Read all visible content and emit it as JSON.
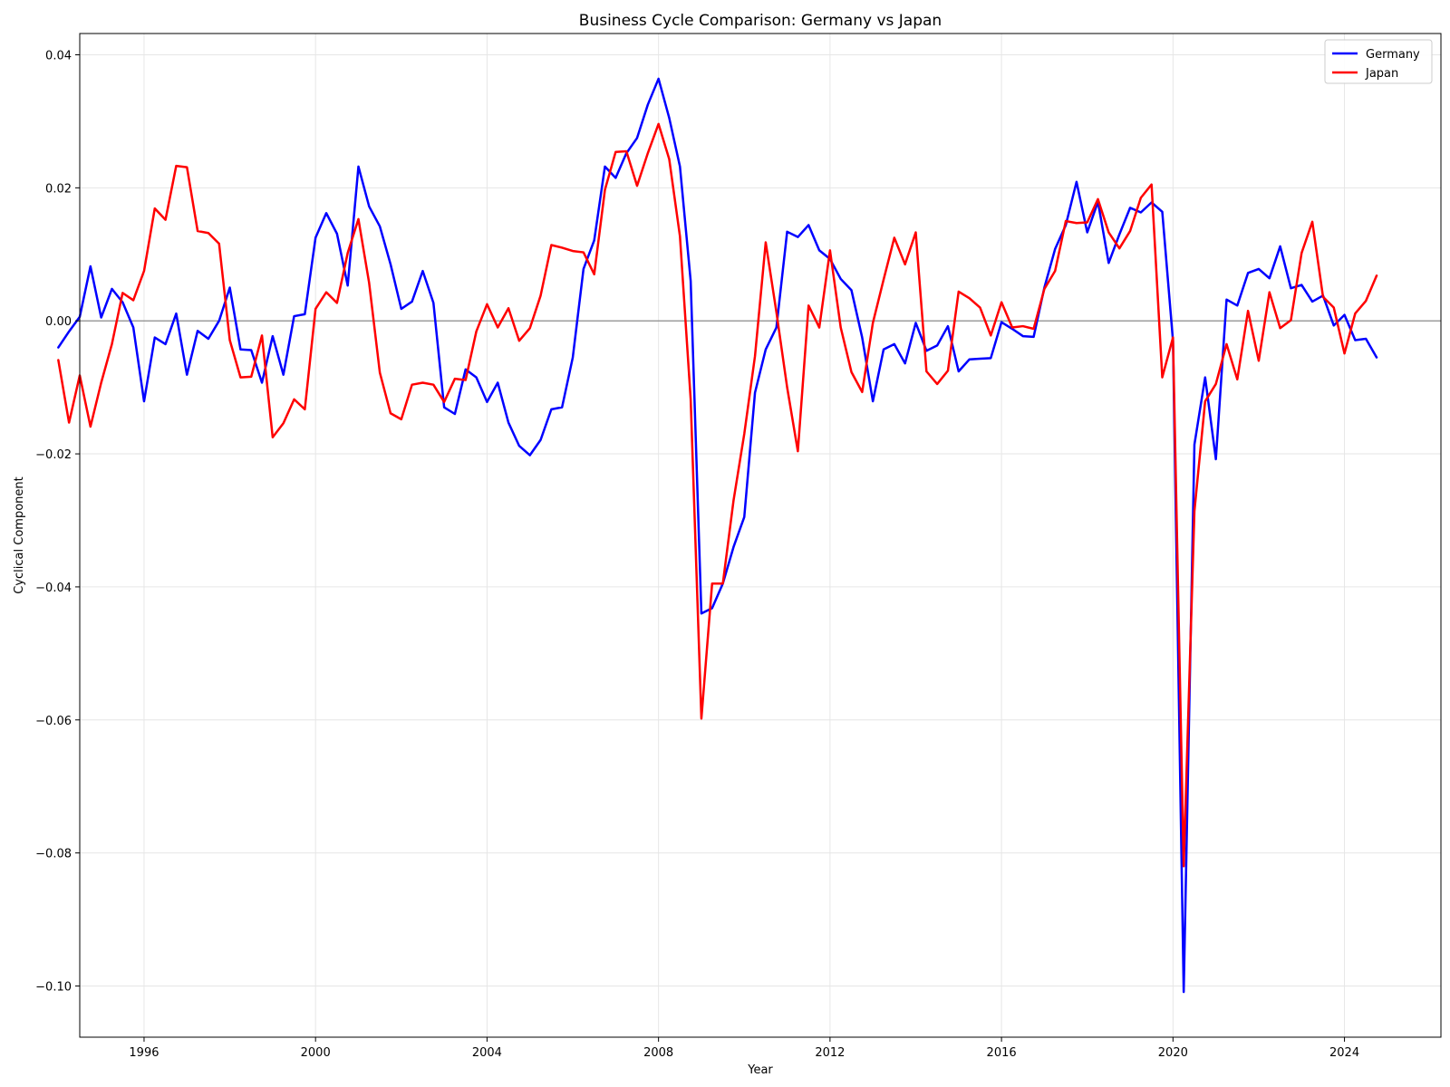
{
  "chart_data": {
    "type": "line",
    "title": "Business Cycle Comparison: Germany vs Japan",
    "xlabel": "Year",
    "ylabel": "Cyclical Component",
    "xlim": [
      1994.5,
      2026.25
    ],
    "ylim": [
      -0.1077,
      0.0432
    ],
    "xticks": [
      1996,
      2000,
      2004,
      2008,
      2012,
      2016,
      2020,
      2024
    ],
    "yticks": [
      0.04,
      0.02,
      0.0,
      -0.02,
      -0.04,
      -0.06,
      -0.08,
      -0.1
    ],
    "ytick_labels": [
      "0.04",
      "0.02",
      "0.00",
      "−0.02",
      "−0.04",
      "−0.06",
      "−0.08",
      "−0.10"
    ],
    "grid": true,
    "zero_line": true,
    "legend": "top-right",
    "x_start": 1994.0,
    "x_step": 0.25,
    "series": [
      {
        "name": "Germany",
        "color": "#0000ff",
        "values": [
          -0.004,
          -0.0016,
          0.0006,
          0.0082,
          0.0005,
          0.0048,
          0.0028,
          -0.001,
          -0.0121,
          -0.0025,
          -0.0035,
          0.0011,
          -0.0081,
          -0.0015,
          -0.0027,
          0.0,
          0.005,
          -0.0043,
          -0.0044,
          -0.0093,
          -0.0023,
          -0.0081,
          0.0007,
          0.001,
          0.0125,
          0.0162,
          0.0131,
          0.0053,
          0.0232,
          0.0172,
          0.0142,
          0.0085,
          0.0018,
          0.0029,
          0.0075,
          0.0027,
          -0.013,
          -0.014,
          -0.0073,
          -0.0085,
          -0.0122,
          -0.0093,
          -0.0153,
          -0.0188,
          -0.0202,
          -0.0179,
          -0.0133,
          -0.013,
          -0.0055,
          0.0078,
          0.0121,
          0.0232,
          0.0215,
          0.0252,
          0.0275,
          0.0325,
          0.0364,
          0.0305,
          0.0232,
          0.006,
          -0.044,
          -0.0432,
          -0.0395,
          -0.034,
          -0.0295,
          -0.0108,
          -0.0043,
          -0.001,
          0.0134,
          0.0126,
          0.0144,
          0.0106,
          0.0093,
          0.0063,
          0.0046,
          -0.0025,
          -0.0121,
          -0.0043,
          -0.0035,
          -0.0064,
          -0.0003,
          -0.0045,
          -0.0037,
          -0.0008,
          -0.0076,
          -0.0058,
          -0.0057,
          -0.0056,
          -0.0002,
          -0.0012,
          -0.0023,
          -0.0024,
          0.005,
          0.0108,
          0.0144,
          0.0209,
          0.0133,
          0.0179,
          0.0087,
          0.013,
          0.017,
          0.0163,
          0.0178,
          0.0164,
          -0.003,
          -0.1009,
          -0.0186,
          -0.0085,
          -0.0208,
          0.0032,
          0.0023,
          0.0072,
          0.0078,
          0.0064,
          0.0112,
          0.0049,
          0.0054,
          0.0029,
          0.0038,
          -0.0007,
          0.0009,
          -0.0029,
          -0.0027,
          -0.0055
        ]
      },
      {
        "name": "Japan",
        "color": "#ff0000",
        "values": [
          -0.0059,
          -0.0153,
          -0.0082,
          -0.0159,
          -0.0093,
          -0.0035,
          0.0042,
          0.0031,
          0.0075,
          0.0169,
          0.0152,
          0.0233,
          0.0231,
          0.0135,
          0.0132,
          0.0116,
          -0.0029,
          -0.0085,
          -0.0084,
          -0.0022,
          -0.0175,
          -0.0154,
          -0.0118,
          -0.0133,
          0.0018,
          0.0043,
          0.0027,
          0.0102,
          0.0153,
          0.0057,
          -0.0078,
          -0.0139,
          -0.0148,
          -0.0096,
          -0.0093,
          -0.0096,
          -0.0122,
          -0.0087,
          -0.0089,
          -0.0016,
          0.0025,
          -0.001,
          0.0019,
          -0.003,
          -0.0011,
          0.0038,
          0.0114,
          0.011,
          0.0105,
          0.0103,
          0.007,
          0.0197,
          0.0254,
          0.0255,
          0.0203,
          0.0252,
          0.0296,
          0.0243,
          0.0127,
          -0.0118,
          -0.0598,
          -0.0395,
          -0.0395,
          -0.027,
          -0.017,
          -0.0053,
          0.0118,
          0.0013,
          -0.01,
          -0.0196,
          0.0023,
          -0.001,
          0.0106,
          -0.001,
          -0.0077,
          -0.0107,
          -0.0003,
          0.0062,
          0.0125,
          0.0085,
          0.0133,
          -0.0076,
          -0.0095,
          -0.0075,
          0.0044,
          0.0034,
          0.002,
          -0.0022,
          0.0028,
          -0.001,
          -0.0008,
          -0.0012,
          0.0048,
          0.0075,
          0.015,
          0.0147,
          0.0148,
          0.0183,
          0.0133,
          0.0109,
          0.0135,
          0.0185,
          0.0205,
          -0.0085,
          -0.0025,
          -0.082,
          -0.0286,
          -0.0121,
          -0.0095,
          -0.0035,
          -0.0088,
          0.0015,
          -0.006,
          0.0043,
          -0.0011,
          0.0001,
          0.0102,
          0.0149,
          0.0036,
          0.002,
          -0.0049,
          0.0011,
          0.003,
          0.0068
        ]
      }
    ]
  }
}
